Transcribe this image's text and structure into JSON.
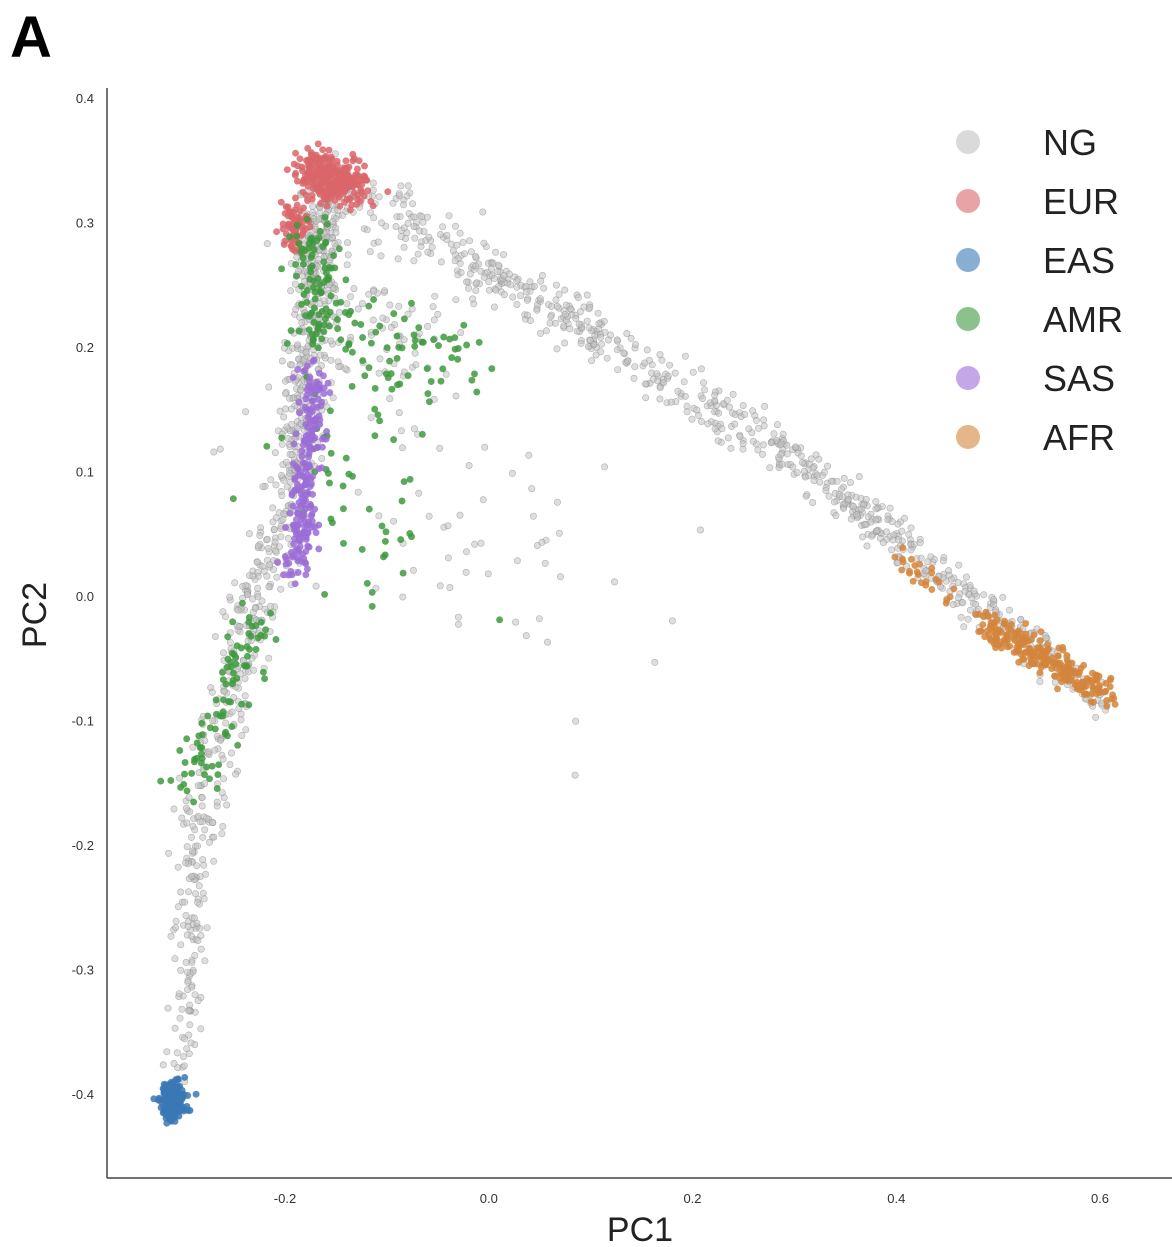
{
  "panel_label": "A",
  "chart_data": {
    "type": "scatter",
    "xlabel": "PC1",
    "ylabel": "PC2",
    "xlim": [
      -0.37,
      0.66
    ],
    "ylim": [
      -0.47,
      0.41
    ],
    "xticks": [
      -0.2,
      0.0,
      0.2,
      0.4,
      0.6
    ],
    "xtick_labels": [
      "-0.2",
      "0.0",
      "0.2",
      "0.4",
      "0.6"
    ],
    "yticks": [
      0.4,
      0.3,
      0.2,
      0.1,
      0.0,
      -0.1,
      -0.2,
      -0.3,
      -0.4
    ],
    "ytick_labels": [
      "0.4",
      "0.3",
      "0.2",
      "0.1",
      "0.0",
      "-0.1",
      "-0.2",
      "-0.3",
      "-0.4"
    ],
    "grid": false,
    "legend_position": "top-right",
    "series": [
      {
        "name": "NG",
        "color": "#c2c2c2",
        "clusters": [
          {
            "from": [
              -0.16,
              0.33
            ],
            "to": [
              -0.17,
              0.25
            ],
            "n": 200,
            "spread": 0.012
          },
          {
            "from": [
              -0.17,
              0.25
            ],
            "to": [
              -0.19,
              0.1
            ],
            "n": 240,
            "spread": 0.01
          },
          {
            "from": [
              -0.19,
              0.1
            ],
            "to": [
              -0.24,
              -0.03
            ],
            "n": 160,
            "spread": 0.012
          },
          {
            "from": [
              -0.24,
              -0.03
            ],
            "to": [
              -0.29,
              -0.2
            ],
            "n": 140,
            "spread": 0.012
          },
          {
            "from": [
              -0.29,
              -0.2
            ],
            "to": [
              -0.3,
              -0.38
            ],
            "n": 110,
            "spread": 0.008
          },
          {
            "from": [
              -0.13,
              0.32
            ],
            "to": [
              0.0,
              0.26
            ],
            "n": 120,
            "spread": 0.012
          },
          {
            "from": [
              0.0,
              0.26
            ],
            "to": [
              0.3,
              0.11
            ],
            "n": 300,
            "spread": 0.01
          },
          {
            "from": [
              0.3,
              0.11
            ],
            "to": [
              0.6,
              -0.08
            ],
            "n": 320,
            "spread": 0.008
          },
          {
            "from": [
              -0.15,
              0.24
            ],
            "to": [
              -0.05,
              0.18
            ],
            "n": 80,
            "spread": 0.03
          },
          {
            "from": [
              -0.16,
              0.08
            ],
            "to": [
              0.1,
              0.0
            ],
            "n": 60,
            "spread": 0.06
          }
        ]
      },
      {
        "name": "EUR",
        "color": "#d9666a",
        "clusters": [
          {
            "from": [
              -0.18,
              0.34
            ],
            "to": [
              -0.13,
              0.33
            ],
            "n": 260,
            "spread": 0.01
          },
          {
            "from": [
              -0.19,
              0.31
            ],
            "to": [
              -0.19,
              0.28
            ],
            "n": 70,
            "spread": 0.006
          }
        ]
      },
      {
        "name": "EAS",
        "color": "#3b78b5",
        "clusters": [
          {
            "from": [
              -0.31,
              -0.395
            ],
            "to": [
              -0.31,
              -0.415
            ],
            "n": 160,
            "spread": 0.006
          }
        ]
      },
      {
        "name": "AMR",
        "color": "#3e9a3e",
        "clusters": [
          {
            "from": [
              -0.17,
              0.3
            ],
            "to": [
              -0.17,
              0.2
            ],
            "n": 90,
            "spread": 0.012
          },
          {
            "from": [
              -0.15,
              0.22
            ],
            "to": [
              -0.02,
              0.19
            ],
            "n": 70,
            "spread": 0.02
          },
          {
            "from": [
              -0.17,
              0.12
            ],
            "to": [
              -0.08,
              0.05
            ],
            "n": 50,
            "spread": 0.035
          },
          {
            "from": [
              -0.23,
              -0.02
            ],
            "to": [
              -0.29,
              -0.15
            ],
            "n": 90,
            "spread": 0.012
          }
        ]
      },
      {
        "name": "SAS",
        "color": "#9b6dd6",
        "clusters": [
          {
            "from": [
              -0.17,
              0.18
            ],
            "to": [
              -0.19,
              0.02
            ],
            "n": 220,
            "spread": 0.007
          }
        ]
      },
      {
        "name": "AFR",
        "color": "#d4853c",
        "clusters": [
          {
            "from": [
              0.48,
              -0.02
            ],
            "to": [
              0.61,
              -0.08
            ],
            "n": 240,
            "spread": 0.006
          },
          {
            "from": [
              0.4,
              0.03
            ],
            "to": [
              0.46,
              0.0
            ],
            "n": 25,
            "spread": 0.008
          }
        ]
      }
    ]
  }
}
